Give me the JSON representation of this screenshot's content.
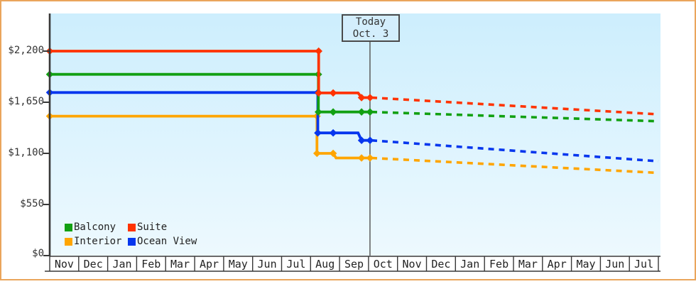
{
  "frame": {
    "border_color": "#eaa55c",
    "background": "#ffffff",
    "plot_bg_top": "#cdeefd",
    "plot_bg_bottom": "#edf9fe"
  },
  "legend": {
    "items": [
      {
        "label": "Balcony",
        "color": "#12a012"
      },
      {
        "label": "Suite",
        "color": "#ff3300"
      },
      {
        "label": "Interior",
        "color": "#ffa500"
      },
      {
        "label": "Ocean View",
        "color": "#0636ee"
      }
    ]
  },
  "chart_data": {
    "type": "line",
    "title": "",
    "xlabel": "",
    "ylabel": "",
    "grid": false,
    "legend_position": "bottom-left",
    "x_axis": {
      "months": [
        "Nov",
        "Dec",
        "Jan",
        "Feb",
        "Mar",
        "Apr",
        "May",
        "Jun",
        "Jul",
        "Aug",
        "Sep",
        "Oct",
        "Nov",
        "Dec",
        "Jan",
        "Feb",
        "Mar",
        "Apr",
        "May",
        "Jun",
        "Jul"
      ]
    },
    "y_axis": {
      "ticks": [
        {
          "label": "$2,200",
          "value": 2200
        },
        {
          "label": "$1,650",
          "value": 1650
        },
        {
          "label": "$1,100",
          "value": 1100
        },
        {
          "label": "$550",
          "value": 550
        },
        {
          "label": "$0",
          "value": 0
        }
      ],
      "range": [
        0,
        2600
      ],
      "currency": "$"
    },
    "today": {
      "line1": "Today",
      "line2": "Oct. 3",
      "month_unit": 11.05
    },
    "series": [
      {
        "name": "Interior",
        "color": "#ffa500",
        "solid_points": [
          [
            0,
            1500
          ],
          [
            9.22,
            1500
          ],
          [
            9.22,
            1100
          ],
          [
            9.78,
            1100
          ],
          [
            9.88,
            1050
          ],
          [
            11.05,
            1050
          ]
        ],
        "marker_points": [
          [
            0,
            1500
          ],
          [
            9.22,
            1500
          ],
          [
            9.22,
            1100
          ],
          [
            9.78,
            1100
          ],
          [
            10.76,
            1050
          ],
          [
            11.05,
            1050
          ]
        ],
        "dashed_points": [
          [
            11.1,
            1050
          ],
          [
            21.0,
            890
          ]
        ]
      },
      {
        "name": "Ocean View",
        "color": "#0636ee",
        "solid_points": [
          [
            0,
            1755
          ],
          [
            9.25,
            1755
          ],
          [
            9.25,
            1320
          ],
          [
            10.64,
            1320
          ],
          [
            10.76,
            1240
          ],
          [
            11.05,
            1240
          ]
        ],
        "marker_points": [
          [
            0,
            1755
          ],
          [
            9.25,
            1755
          ],
          [
            9.25,
            1320
          ],
          [
            9.78,
            1320
          ],
          [
            10.76,
            1240
          ],
          [
            11.05,
            1240
          ]
        ],
        "dashed_points": [
          [
            11.1,
            1240
          ],
          [
            21.0,
            1015
          ]
        ]
      },
      {
        "name": "Balcony",
        "color": "#12a012",
        "solid_points": [
          [
            0,
            1950
          ],
          [
            9.27,
            1950
          ],
          [
            9.27,
            1545
          ],
          [
            11.05,
            1545
          ]
        ],
        "marker_points": [
          [
            0,
            1950
          ],
          [
            9.27,
            1950
          ],
          [
            9.27,
            1545
          ],
          [
            9.78,
            1545
          ],
          [
            10.76,
            1545
          ],
          [
            11.05,
            1545
          ]
        ],
        "dashed_points": [
          [
            11.1,
            1545
          ],
          [
            21.0,
            1445
          ]
        ]
      },
      {
        "name": "Suite",
        "color": "#ff3300",
        "solid_points": [
          [
            0,
            2200
          ],
          [
            9.28,
            2200
          ],
          [
            9.28,
            1750
          ],
          [
            9.78,
            1750
          ],
          [
            10.64,
            1750
          ],
          [
            10.76,
            1700
          ],
          [
            11.05,
            1700
          ]
        ],
        "marker_points": [
          [
            0,
            2200
          ],
          [
            9.28,
            2200
          ],
          [
            9.28,
            1750
          ],
          [
            9.78,
            1750
          ],
          [
            10.76,
            1700
          ],
          [
            11.05,
            1700
          ]
        ],
        "dashed_points": [
          [
            11.1,
            1700
          ],
          [
            21.0,
            1520
          ]
        ]
      }
    ]
  }
}
